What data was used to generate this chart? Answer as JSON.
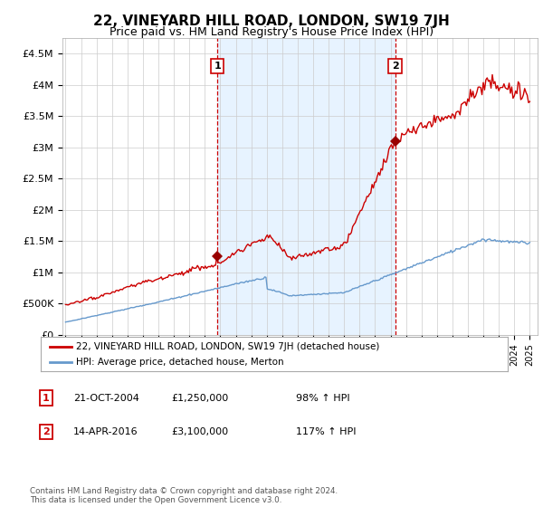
{
  "title": "22, VINEYARD HILL ROAD, LONDON, SW19 7JH",
  "subtitle": "Price paid vs. HM Land Registry's House Price Index (HPI)",
  "ylim": [
    0,
    4750000
  ],
  "yticks": [
    0,
    500000,
    1000000,
    1500000,
    2000000,
    2500000,
    3000000,
    3500000,
    4000000,
    4500000
  ],
  "ytick_labels": [
    "£0",
    "£500K",
    "£1M",
    "£1.5M",
    "£2M",
    "£2.5M",
    "£3M",
    "£3.5M",
    "£4M",
    "£4.5M"
  ],
  "xlim_start": 1994.8,
  "xlim_end": 2025.5,
  "line1_color": "#cc0000",
  "line2_color": "#6699cc",
  "shade_color": "#ddeeff",
  "dashed_color": "#cc0000",
  "sale1_x": 2004.81,
  "sale1_y": 1250000,
  "sale1_label": "1",
  "sale2_x": 2016.29,
  "sale2_y": 3100000,
  "sale2_label": "2",
  "legend_line1": "22, VINEYARD HILL ROAD, LONDON, SW19 7JH (detached house)",
  "legend_line2": "HPI: Average price, detached house, Merton",
  "table_rows": [
    {
      "num": "1",
      "date": "21-OCT-2004",
      "price": "£1,250,000",
      "hpi": "98% ↑ HPI"
    },
    {
      "num": "2",
      "date": "14-APR-2016",
      "price": "£3,100,000",
      "hpi": "117% ↑ HPI"
    }
  ],
  "footnote": "Contains HM Land Registry data © Crown copyright and database right 2024.\nThis data is licensed under the Open Government Licence v3.0.",
  "background_color": "#ffffff",
  "grid_color": "#cccccc",
  "title_fontsize": 11,
  "subtitle_fontsize": 9
}
